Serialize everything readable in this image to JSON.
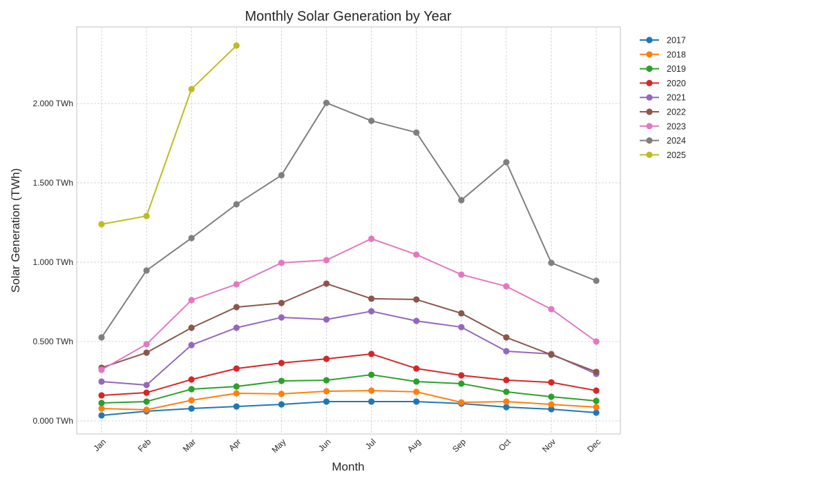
{
  "chart_data": {
    "type": "line",
    "title": "Monthly Solar Generation by Year",
    "xlabel": "Month",
    "ylabel": "Solar Generation (TWh)",
    "categories": [
      "Jan",
      "Feb",
      "Mar",
      "Apr",
      "May",
      "Jun",
      "Jul",
      "Aug",
      "Sep",
      "Oct",
      "Nov",
      "Dec"
    ],
    "yticks": [
      0.0,
      0.5,
      1.0,
      1.5,
      2.0
    ],
    "ytick_labels": [
      "0.000 TWh",
      "0.500 TWh",
      "1.000 TWh",
      "1.500 TWh",
      "2.000 TWh"
    ],
    "ylim": [
      -0.08,
      2.48
    ],
    "grid": true,
    "legend_position": "outside-top-right",
    "series": [
      {
        "name": "2017",
        "color": "#1f77b4",
        "values": [
          0.035,
          0.061,
          0.078,
          0.091,
          0.104,
          0.122,
          0.122,
          0.122,
          0.109,
          0.087,
          0.074,
          0.052
        ]
      },
      {
        "name": "2018",
        "color": "#ff7f0e",
        "values": [
          0.078,
          0.07,
          0.13,
          0.174,
          0.17,
          0.187,
          0.191,
          0.183,
          0.117,
          0.122,
          0.104,
          0.087
        ]
      },
      {
        "name": "2019",
        "color": "#2ca02c",
        "values": [
          0.113,
          0.122,
          0.2,
          0.217,
          0.252,
          0.256,
          0.291,
          0.248,
          0.235,
          0.183,
          0.152,
          0.126
        ]
      },
      {
        "name": "2020",
        "color": "#d62728",
        "values": [
          0.161,
          0.178,
          0.261,
          0.33,
          0.365,
          0.391,
          0.422,
          0.33,
          0.287,
          0.257,
          0.243,
          0.191
        ]
      },
      {
        "name": "2021",
        "color": "#9467bd",
        "values": [
          0.248,
          0.226,
          0.478,
          0.587,
          0.652,
          0.639,
          0.691,
          0.63,
          0.591,
          0.439,
          0.422,
          0.296
        ]
      },
      {
        "name": "2022",
        "color": "#8c564b",
        "values": [
          0.335,
          0.43,
          0.587,
          0.717,
          0.743,
          0.865,
          0.77,
          0.765,
          0.678,
          0.526,
          0.417,
          0.309
        ]
      },
      {
        "name": "2023",
        "color": "#e377c2",
        "values": [
          0.322,
          0.483,
          0.761,
          0.861,
          0.996,
          1.013,
          1.148,
          1.048,
          0.922,
          0.848,
          0.704,
          0.5
        ]
      },
      {
        "name": "2024",
        "color": "#7f7f7f",
        "values": [
          0.526,
          0.948,
          1.152,
          1.365,
          1.548,
          2.004,
          1.891,
          1.817,
          1.391,
          1.63,
          0.996,
          0.883
        ]
      },
      {
        "name": "2025",
        "color": "#bcbd22",
        "values": [
          1.239,
          1.291,
          2.091,
          2.365,
          null,
          null,
          null,
          null,
          null,
          null,
          null,
          null
        ]
      }
    ]
  }
}
